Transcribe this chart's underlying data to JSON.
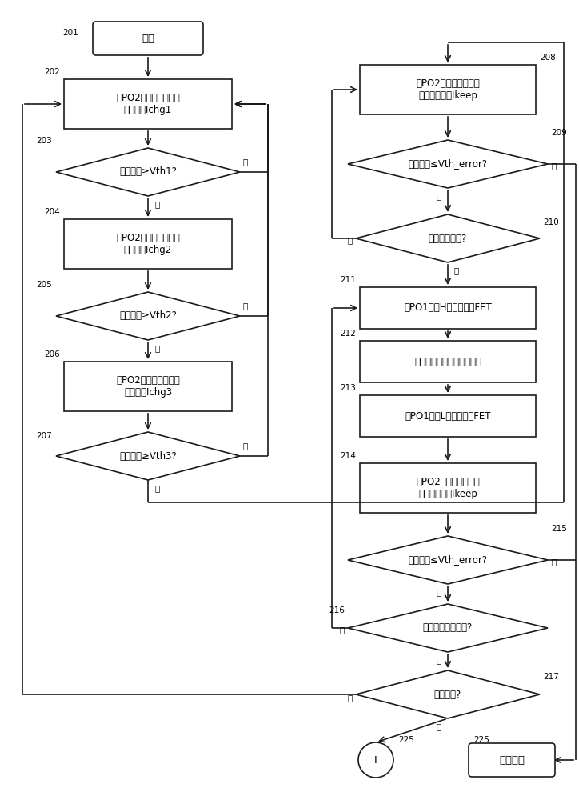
{
  "bg_color": "#ffffff",
  "line_color": "#1a1a1a",
  "text_color": "#000000",
  "font_size": 8.5,
  "nodes": {
    "start_text": "开始",
    "n202_text": "从PO2输出信号以选择\n充电电流Ichg1",
    "n203_text": "头部电压≥Vth1?",
    "n204_text": "从PO2输出信号以选择\n充电电流Ichg2",
    "n205_text": "头部电压≥Vth2?",
    "n206_text": "从PO2输出信号以选择\n充电电流Ichg3",
    "n207_text": "头部电压≥Vth3?",
    "n208_text": "从PO2输出信号以选择\n电压维持电流Ikeep",
    "n209_text": "头部电压≤Vth_error?",
    "n210_text": "开始打印操作?",
    "n211_text": "使PO1处于H状态以接通FET",
    "n212_text": "驱动头部并且进行打印操作",
    "n213_text": "使PO1处于L状态以断开FET",
    "n214_text": "从PO2输出信号以选择\n电压维持电流Ikeep",
    "n215_text": "头部电压≤Vth_error?",
    "n216_text": "开始下一打印操作?",
    "n217_text": "打印结束?",
    "end_i_text": "I",
    "end_err_text": "错误结束",
    "yes": "是",
    "no": "否"
  }
}
